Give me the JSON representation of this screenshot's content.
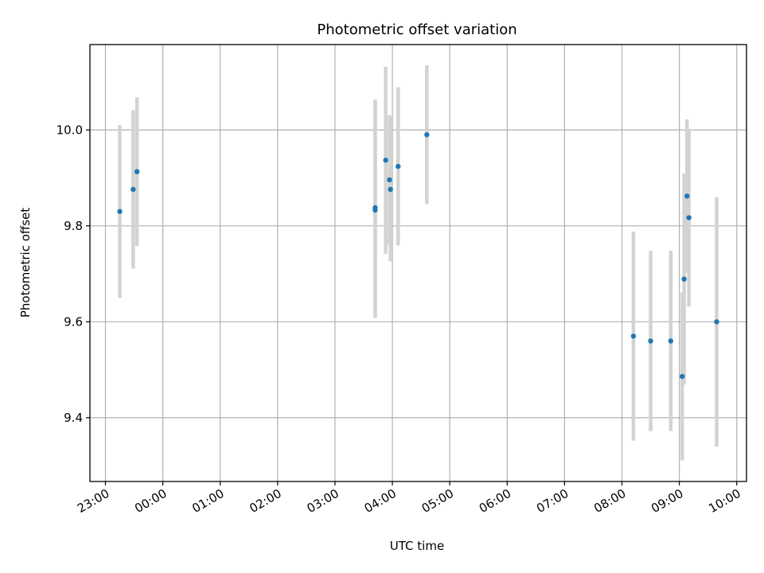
{
  "chart_data": {
    "type": "scatter",
    "title": "Photometric offset variation",
    "xlabel": "UTC time",
    "ylabel": "Photometric offset",
    "x_tick_labels": [
      "23:00",
      "00:00",
      "01:00",
      "02:00",
      "03:00",
      "04:00",
      "05:00",
      "06:00",
      "07:00",
      "08:00",
      "09:00",
      "10:00"
    ],
    "x_ticks_hours": [
      -1,
      0,
      1,
      2,
      3,
      4,
      5,
      6,
      7,
      8,
      9,
      10
    ],
    "y_ticks": [
      9.4,
      9.6,
      9.8,
      10.0
    ],
    "y_tick_labels": [
      "9.4",
      "9.6",
      "9.8",
      "10.0"
    ],
    "xlim_hours": [
      -1.27,
      10.17
    ],
    "ylim": [
      9.267,
      10.178
    ],
    "grid": true,
    "point_color": "#1f77b4",
    "errorbar_color": "#d3d3d3",
    "series": [
      {
        "points": [
          {
            "x": "23:15",
            "y": 9.83,
            "yerr": 0.18
          },
          {
            "x": "23:29",
            "y": 9.876,
            "yerr": 0.165
          },
          {
            "x": "23:33",
            "y": 9.913,
            "yerr": 0.155
          },
          {
            "x": "03:42",
            "y": 9.838,
            "yerr": 0.225
          },
          {
            "x": "03:42",
            "y": 9.833,
            "yerr": 0.225
          },
          {
            "x": "03:53",
            "y": 9.937,
            "yerr": 0.195
          },
          {
            "x": "03:57",
            "y": 9.896,
            "yerr": 0.135
          },
          {
            "x": "03:58",
            "y": 9.876,
            "yerr": 0.15
          },
          {
            "x": "04:06",
            "y": 9.924,
            "yerr": 0.165
          },
          {
            "x": "04:36",
            "y": 9.99,
            "yerr": 0.145
          },
          {
            "x": "08:12",
            "y": 9.57,
            "yerr": 0.218
          },
          {
            "x": "08:30",
            "y": 9.56,
            "yerr": 0.188
          },
          {
            "x": "08:51",
            "y": 9.56,
            "yerr": 0.188
          },
          {
            "x": "09:03",
            "y": 9.486,
            "yerr": 0.175
          },
          {
            "x": "09:05",
            "y": 9.689,
            "yerr": 0.22
          },
          {
            "x": "09:08",
            "y": 9.862,
            "yerr": 0.16
          },
          {
            "x": "09:10",
            "y": 9.817,
            "yerr": 0.185
          },
          {
            "x": "09:39",
            "y": 9.6,
            "yerr": 0.26
          }
        ]
      }
    ]
  }
}
